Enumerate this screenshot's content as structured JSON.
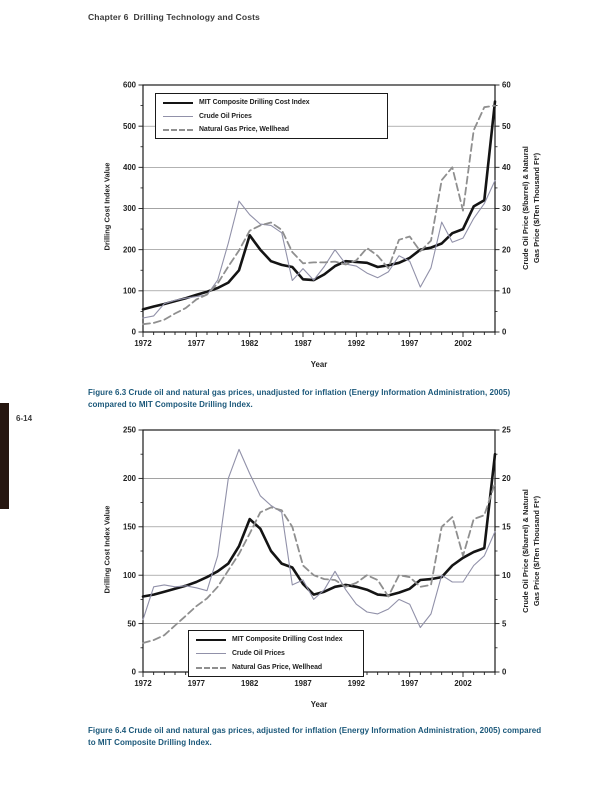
{
  "page": {
    "header": "Chapter 6  Drilling Technology and Costs",
    "page_number": "6-14"
  },
  "colors": {
    "caption": "#1b587a",
    "mit_line": "#141414",
    "crude_line": "#9191a9",
    "gas_line": "#8f8f8f",
    "grid_line": "#848484",
    "axis_line": "#1a1a1a",
    "tick_text": "#222222",
    "sidebar_bar": "#261610"
  },
  "figures": {
    "fig63_caption": "Figure 6.3 Crude oil and natural gas prices, unadjusted for inflation (Energy Information Administration, 2005) compared to MIT Composite Drilling Index.",
    "fig64_caption": "Figure 6.4 Crude oil and natural gas prices, adjusted for inflation (Energy Information Administration, 2005) compared to MIT Composite Drilling Index."
  },
  "chart_data": [
    {
      "type": "line",
      "title": "",
      "xlabel": "Year",
      "ylabel_left": "Drilling Cost Index Value",
      "ylabel_right": [
        "Crude Oil Price ($/barrel) & Natural",
        "Gas Price ($/Ten Thousand Ft³)"
      ],
      "x_range": [
        1972,
        2005
      ],
      "x_major_ticks": [
        1972,
        1977,
        1982,
        1987,
        1992,
        1997,
        2002
      ],
      "y_left_range": [
        0,
        600
      ],
      "y_left_step": 100,
      "y_right_range": [
        0,
        60
      ],
      "y_right_step": 10,
      "grid": true,
      "legend_position": "top-left",
      "x": [
        1972,
        1973,
        1974,
        1975,
        1976,
        1977,
        1978,
        1979,
        1980,
        1981,
        1982,
        1983,
        1984,
        1985,
        1986,
        1987,
        1988,
        1989,
        1990,
        1991,
        1992,
        1993,
        1994,
        1995,
        1996,
        1997,
        1998,
        1999,
        2000,
        2001,
        2002,
        2003,
        2004,
        2005
      ],
      "series": [
        {
          "name": "MIT Composite Drilling Cost Index",
          "axis": "left",
          "values": [
            55,
            62,
            68,
            75,
            82,
            90,
            98,
            107,
            120,
            150,
            235,
            200,
            172,
            163,
            158,
            128,
            126,
            140,
            160,
            172,
            170,
            168,
            158,
            162,
            168,
            180,
            200,
            205,
            215,
            240,
            250,
            305,
            320,
            560
          ]
        },
        {
          "name": "Crude Oil Prices",
          "axis": "right",
          "values": [
            3.4,
            3.9,
            6.9,
            7.7,
            8.2,
            8.6,
            9.0,
            12.6,
            21.6,
            31.8,
            28.5,
            26.2,
            25.9,
            24.1,
            12.5,
            15.4,
            12.6,
            15.9,
            20.0,
            16.5,
            16.0,
            14.3,
            13.2,
            14.6,
            18.5,
            17.2,
            10.9,
            15.6,
            26.7,
            21.8,
            22.8,
            27.6,
            31.2,
            36.8
          ]
        },
        {
          "name": "Natural Gas Price, Wellhead",
          "axis": "right",
          "values": [
            1.9,
            2.2,
            3.0,
            4.5,
            5.8,
            7.9,
            9.1,
            11.8,
            15.9,
            19.8,
            24.6,
            25.9,
            26.6,
            24.8,
            19.4,
            16.7,
            16.9,
            16.9,
            17.1,
            16.4,
            17.4,
            20.4,
            18.5,
            15.5,
            22.4,
            23.2,
            19.6,
            22.2,
            36.9,
            40.0,
            29.5,
            49.0,
            54.6,
            55.0
          ]
        }
      ]
    },
    {
      "type": "line",
      "title": "",
      "xlabel": "Year",
      "ylabel_left": "Drilling Cost Index Value",
      "ylabel_right": [
        "Crude Oil Price ($/barrel) & Natural",
        "Gas Price ($/Ten Thousand Ft³)"
      ],
      "x_range": [
        1972,
        2005
      ],
      "x_major_ticks": [
        1972,
        1977,
        1982,
        1987,
        1992,
        1997,
        2002
      ],
      "y_left_range": [
        0,
        250
      ],
      "y_left_step": 50,
      "y_right_range": [
        0,
        25
      ],
      "y_right_step": 5,
      "grid": true,
      "legend_position": "bottom-left",
      "x": [
        1972,
        1973,
        1974,
        1975,
        1976,
        1977,
        1978,
        1979,
        1980,
        1981,
        1982,
        1983,
        1984,
        1985,
        1986,
        1987,
        1988,
        1989,
        1990,
        1991,
        1992,
        1993,
        1994,
        1995,
        1996,
        1997,
        1998,
        1999,
        2000,
        2001,
        2002,
        2003,
        2004,
        2005
      ],
      "series": [
        {
          "name": "MIT Composite Drilling Cost Index",
          "axis": "left",
          "values": [
            78,
            80,
            83,
            86,
            89,
            93,
            98,
            104,
            112,
            130,
            158,
            148,
            125,
            112,
            108,
            91,
            80,
            83,
            88,
            90,
            88,
            85,
            80,
            79,
            82,
            86,
            95,
            96,
            98,
            110,
            118,
            124,
            128,
            225
          ]
        },
        {
          "name": "Crude Oil Prices",
          "axis": "right",
          "values": [
            5.4,
            8.8,
            9.0,
            8.8,
            8.9,
            8.7,
            8.4,
            12.0,
            20.0,
            23.0,
            20.5,
            18.2,
            17.2,
            16.5,
            9.0,
            9.5,
            7.5,
            8.5,
            10.4,
            8.5,
            7.0,
            6.2,
            6.0,
            6.5,
            7.5,
            7.0,
            4.6,
            6.0,
            10.0,
            9.3,
            9.3,
            11.0,
            12.0,
            14.5
          ]
        },
        {
          "name": "Natural Gas Price, Wellhead",
          "axis": "right",
          "values": [
            3.0,
            3.3,
            3.8,
            4.8,
            5.8,
            6.8,
            7.6,
            8.8,
            10.5,
            12.2,
            14.3,
            16.5,
            17.0,
            16.7,
            15.0,
            11.0,
            10.0,
            9.6,
            9.5,
            8.8,
            9.2,
            10.0,
            9.5,
            7.8,
            10.0,
            9.8,
            8.8,
            9.0,
            15.0,
            16.0,
            12.0,
            15.8,
            16.2,
            19.5
          ]
        }
      ]
    }
  ]
}
